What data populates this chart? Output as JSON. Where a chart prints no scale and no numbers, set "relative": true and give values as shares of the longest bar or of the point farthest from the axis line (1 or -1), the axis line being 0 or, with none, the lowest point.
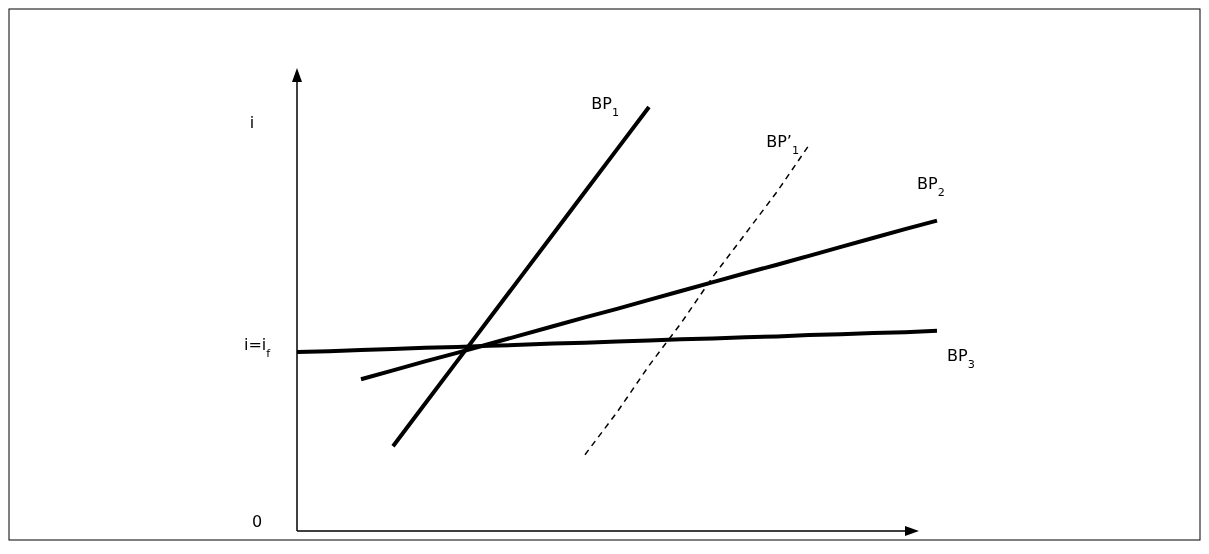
{
  "chart_data": {
    "type": "line",
    "relative": true,
    "ylabel": "i",
    "legend": false,
    "marker": "none",
    "categories": [
      null,
      null,
      null,
      null,
      null,
      null,
      null,
      null,
      null,
      null,
      null,
      null,
      null,
      null,
      null,
      null,
      null,
      null,
      null,
      null,
      null,
      null
    ],
    "annotations": [
      "i=i$_{f}$",
      "0"
    ],
    "series": [
      {
        "name": "BP$_{1}$",
        "color": "#000000",
        "line_style": "solid",
        "values": [
          null,
          null,
          null,
          0.2,
          0.3,
          0.4,
          0.5,
          0.6,
          0.7,
          0.8,
          0.9,
          1.0,
          null,
          null,
          null,
          null,
          null,
          null,
          null,
          null,
          null,
          null
        ]
      },
      {
        "name": "BP’$_{1}$",
        "color": "#000000",
        "line_style": "dashed",
        "values": [
          null,
          null,
          null,
          null,
          null,
          null,
          null,
          null,
          null,
          0.18,
          0.28,
          0.39,
          0.49,
          0.6,
          0.7,
          0.8,
          0.91,
          null,
          null,
          null,
          null,
          null
        ]
      },
      {
        "name": "BP$_{2}$",
        "color": "#000000",
        "line_style": "solid",
        "values": [
          null,
          null,
          0.358,
          0.379,
          0.4,
          0.42,
          0.441,
          0.462,
          0.483,
          0.504,
          0.524,
          0.545,
          0.566,
          0.587,
          0.608,
          0.628,
          0.649,
          0.67,
          0.691,
          0.712,
          0.732,
          null
        ]
      },
      {
        "name": "BP$_{3}$",
        "color": "#000000",
        "line_style": "solid",
        "values": [
          0.422,
          0.424,
          0.427,
          0.429,
          0.432,
          0.434,
          0.437,
          0.439,
          0.442,
          0.444,
          0.447,
          0.449,
          0.452,
          0.454,
          0.457,
          0.459,
          0.462,
          0.464,
          0.467,
          0.469,
          0.472,
          null
        ]
      }
    ]
  }
}
